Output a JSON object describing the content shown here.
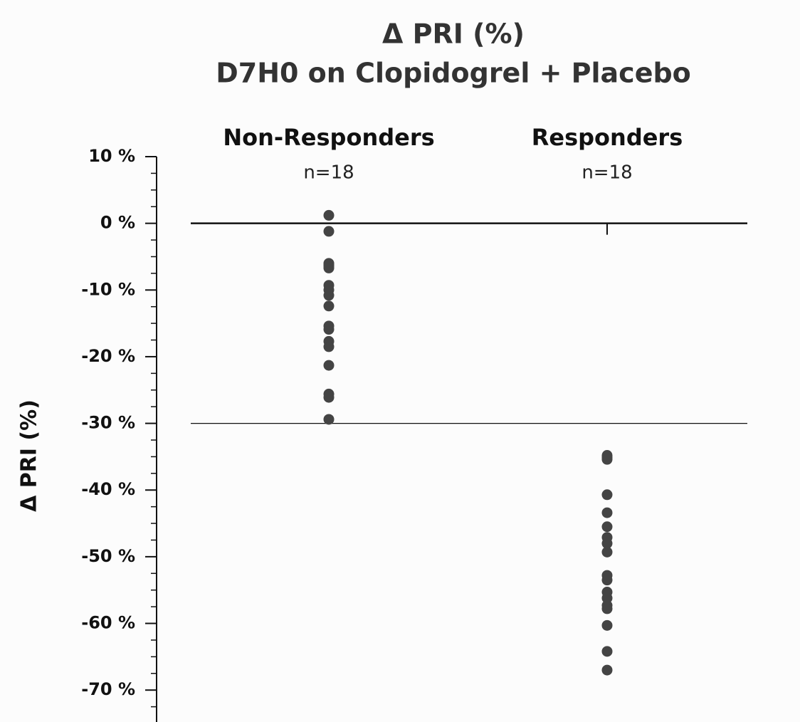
{
  "chart_data": {
    "type": "strip",
    "title": "Δ PRI (%)",
    "subtitle": "D7H0 on Clopidogrel + Placebo",
    "y_label": "Δ PRI (%)",
    "categories": [
      "Non-Responders",
      "Responders"
    ],
    "annotations": [
      "n=18",
      "n=18"
    ],
    "values": [
      [
        1.2,
        -1.2,
        -6.0,
        -6.2,
        -6.4,
        -6.7,
        -9.3,
        -10.0,
        -10.8,
        -12.4,
        -15.4,
        -15.9,
        -17.7,
        -18.5,
        -21.3,
        -25.6,
        -26.1,
        -29.4
      ],
      [
        -34.8,
        -35.1,
        -35.4,
        -40.7,
        -43.4,
        -45.5,
        -47.1,
        -48.0,
        -49.3,
        -52.8,
        -53.5,
        -55.3,
        -56.2,
        -57.3,
        -57.8,
        -60.3,
        -64.2,
        -67.0
      ]
    ],
    "color": "#444444",
    "ylim": [
      -75,
      10
    ],
    "yticks": [
      {
        "value": 10,
        "label": "10 %"
      },
      {
        "value": 0,
        "label": "0 %"
      },
      {
        "value": -10,
        "label": "-10 %"
      },
      {
        "value": -20,
        "label": "-20 %"
      },
      {
        "value": -30,
        "label": "-30 %"
      },
      {
        "value": -40,
        "label": "-40 %"
      },
      {
        "value": -50,
        "label": "-50 %"
      },
      {
        "value": -60,
        "label": "-60 %"
      },
      {
        "value": -70,
        "label": "-70 %"
      }
    ],
    "minor_yticks": [
      7.5,
      5,
      2.5,
      -2.5,
      -5,
      -7.5,
      -12.5,
      -15,
      -17.5,
      -22.5,
      -25,
      -27.5,
      -32.5,
      -35,
      -37.5,
      -42.5,
      -45,
      -47.5,
      -52.5,
      -55,
      -57.5,
      -62.5,
      -65,
      -67.5,
      -72.5
    ],
    "reference_lines": [
      0,
      -30
    ]
  }
}
